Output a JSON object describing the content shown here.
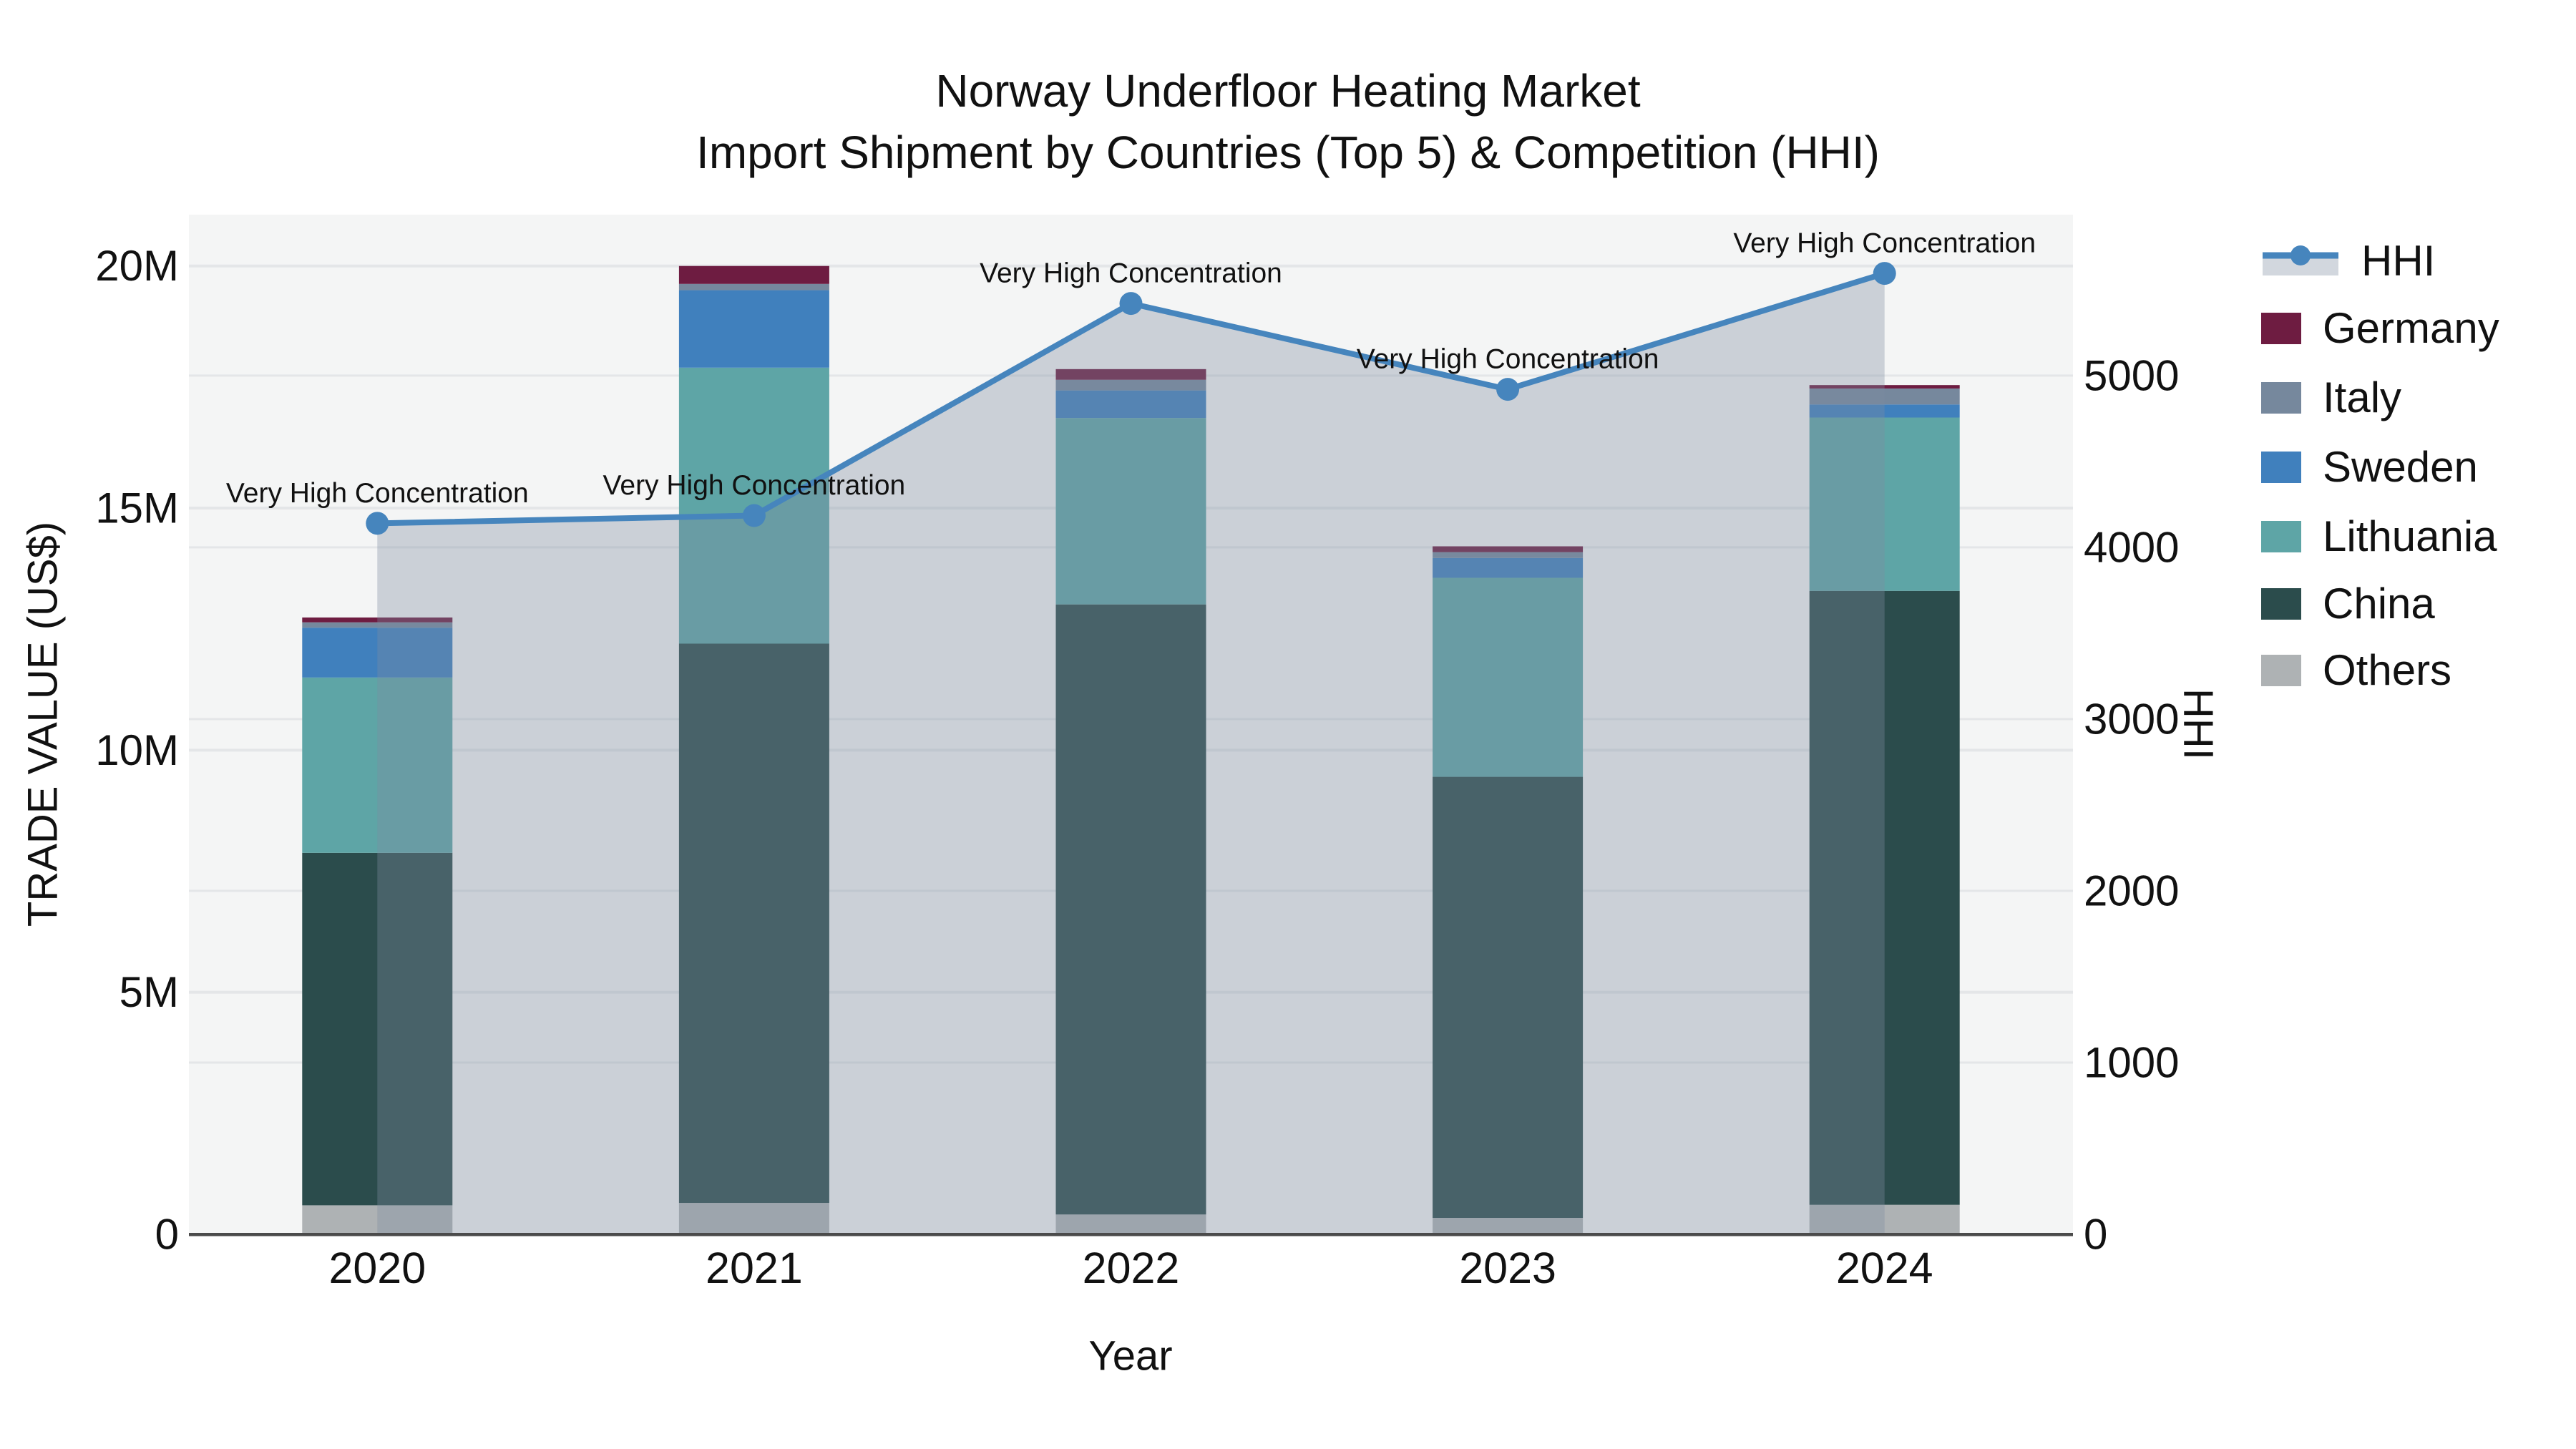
{
  "title": {
    "line1": "Norway Underfloor Heating Market",
    "line2": "Import Shipment by Countries (Top 5) & Competition (HHI)"
  },
  "axes": {
    "x": {
      "title": "Year",
      "categories": [
        "2020",
        "2021",
        "2022",
        "2023",
        "2024"
      ]
    },
    "y_left": {
      "title": "TRADE VALUE (US$)",
      "tick_labels": [
        "0",
        "5M",
        "10M",
        "15M",
        "20M"
      ],
      "tick_values_musd": [
        0,
        5,
        10,
        15,
        20
      ],
      "range_musd": [
        0,
        21.06
      ]
    },
    "y_right": {
      "title": "HHI",
      "tick_labels": [
        "0",
        "1000",
        "2000",
        "3000",
        "4000",
        "5000"
      ],
      "tick_values": [
        0,
        1000,
        2000,
        3000,
        4000,
        5000
      ],
      "range": [
        0,
        5937
      ]
    }
  },
  "legend": {
    "items": [
      {
        "label": "HHI",
        "type": "line",
        "color": "#4685bd"
      },
      {
        "label": "Germany",
        "type": "swatch",
        "color": "#6e1c41"
      },
      {
        "label": "Italy",
        "type": "swatch",
        "color": "#76889d"
      },
      {
        "label": "Sweden",
        "type": "swatch",
        "color": "#4080bd"
      },
      {
        "label": "Lithuania",
        "type": "swatch",
        "color": "#5ea5a6"
      },
      {
        "label": "China",
        "type": "swatch",
        "color": "#2b4c4c"
      },
      {
        "label": "Others",
        "type": "swatch",
        "color": "#aeb2b4"
      }
    ]
  },
  "chart_data": {
    "type": "combo",
    "bar_mode": "stacked",
    "categories": [
      "2020",
      "2021",
      "2022",
      "2023",
      "2024"
    ],
    "bar_unit": "M US$",
    "series": [
      {
        "name": "Others",
        "color": "#aeb2b4",
        "values": [
          0.6,
          0.65,
          0.41,
          0.34,
          0.61
        ]
      },
      {
        "name": "China",
        "color": "#2b4c4c",
        "values": [
          7.28,
          11.55,
          12.6,
          9.11,
          12.68
        ]
      },
      {
        "name": "Lithuania",
        "color": "#5ea5a6",
        "values": [
          3.62,
          5.7,
          3.85,
          4.11,
          3.58
        ]
      },
      {
        "name": "Sweden",
        "color": "#4080bd",
        "values": [
          1.03,
          1.6,
          0.57,
          0.41,
          0.27
        ]
      },
      {
        "name": "Italy",
        "color": "#76889d",
        "values": [
          0.11,
          0.13,
          0.22,
          0.12,
          0.33
        ]
      },
      {
        "name": "Germany",
        "color": "#6e1c41",
        "values": [
          0.1,
          0.37,
          0.22,
          0.12,
          0.07
        ]
      }
    ],
    "bar_totals_musd": [
      12.74,
      20.0,
      17.87,
      14.21,
      17.54
    ],
    "line_series": {
      "name": "HHI",
      "axis": "y_right",
      "color": "#4685bd",
      "fill_color": "rgba(125,140,160,0.35)",
      "values": [
        4140,
        4185,
        5420,
        4920,
        5595
      ]
    },
    "annotations": [
      {
        "text": "Very High Concentration",
        "category": "2020"
      },
      {
        "text": "Very High Concentration",
        "category": "2021"
      },
      {
        "text": "Very High Concentration",
        "category": "2022"
      },
      {
        "text": "Very High Concentration",
        "category": "2023"
      },
      {
        "text": "Very High Concentration",
        "category": "2024"
      }
    ],
    "legend_position": "right",
    "grid": true
  },
  "colors": {
    "plot_bg": "#f4f5f5",
    "grid": "#e4e6e8",
    "axis_line": "#4b4b4b",
    "text": "#111111"
  }
}
